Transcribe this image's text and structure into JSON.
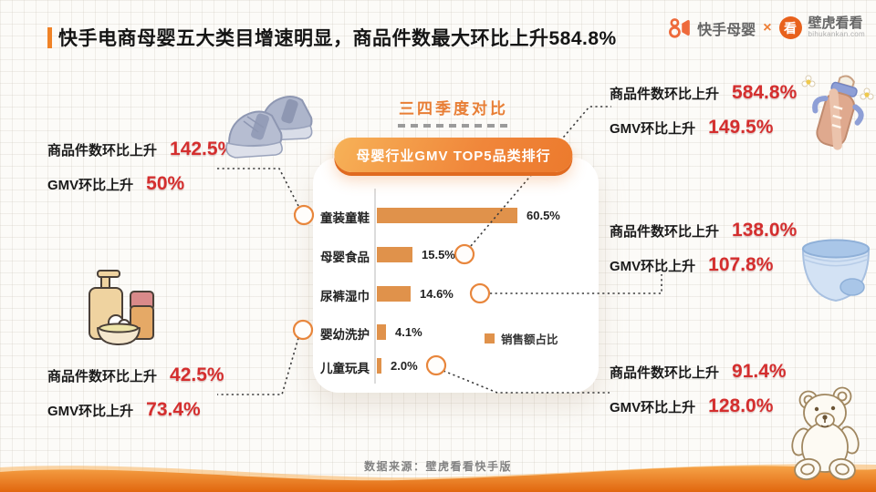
{
  "header": {
    "title": "快手电商母婴五大类目增速明显，商品件数最大环比上升584.8%"
  },
  "logo": {
    "kuaishou_text": "快手母婴",
    "cross": "×",
    "kan_glyph": "看",
    "bihu_text": "壁虎看看",
    "domain": "bihukankan.com"
  },
  "center": {
    "compare_label": "三四季度对比",
    "chart_badge": "母婴行业GMV TOP5品类排行"
  },
  "chart_data": {
    "type": "bar",
    "orientation": "horizontal",
    "title": "母婴行业GMV TOP5品类排行",
    "categories": [
      "童装童鞋",
      "母婴食品",
      "尿裤湿巾",
      "婴幼洗护",
      "儿童玩具"
    ],
    "values": [
      60.5,
      15.5,
      14.6,
      4.1,
      2.0
    ],
    "value_labels": [
      "60.5%",
      "15.5%",
      "14.6%",
      "4.1%",
      "2.0%"
    ],
    "legend": [
      "销售额占比"
    ],
    "xlim": [
      0,
      65
    ],
    "bar_color": "#E0924B",
    "grid": false
  },
  "stats": {
    "left_top": {
      "category": "童装童鞋",
      "rows": [
        {
          "label": "商品件数环比上升",
          "value": "142.5%"
        },
        {
          "label": "GMV环比上升",
          "value": "50%"
        }
      ]
    },
    "left_bottom": {
      "category": "婴幼洗护",
      "rows": [
        {
          "label": "商品件数环比上升",
          "value": "42.5%"
        },
        {
          "label": "GMV环比上升",
          "value": "73.4%"
        }
      ]
    },
    "right_top": {
      "category": "母婴食品",
      "rows": [
        {
          "label": "商品件数环比上升",
          "value": "584.8%"
        },
        {
          "label": "GMV环比上升",
          "value": "149.5%"
        }
      ]
    },
    "right_middle": {
      "category": "尿裤湿巾",
      "rows": [
        {
          "label": "商品件数环比上升",
          "value": "138.0%"
        },
        {
          "label": "GMV环比上升",
          "value": "107.8%"
        }
      ]
    },
    "right_bottom": {
      "category": "儿童玩具",
      "rows": [
        {
          "label": "商品件数环比上升",
          "value": "91.4%"
        },
        {
          "label": "GMV环比上升",
          "value": "128.0%"
        }
      ]
    }
  },
  "illustrations": [
    "sneakers",
    "toiletries",
    "baby-bottle",
    "diaper",
    "teddy-bear"
  ],
  "footer": {
    "source": "数据来源：壁虎看看快手版"
  },
  "colors": {
    "accent_orange": "#EE7E2E",
    "value_red": "#D42E2E",
    "bar_orange": "#E0924B",
    "wave_orange": "#E1660E"
  }
}
